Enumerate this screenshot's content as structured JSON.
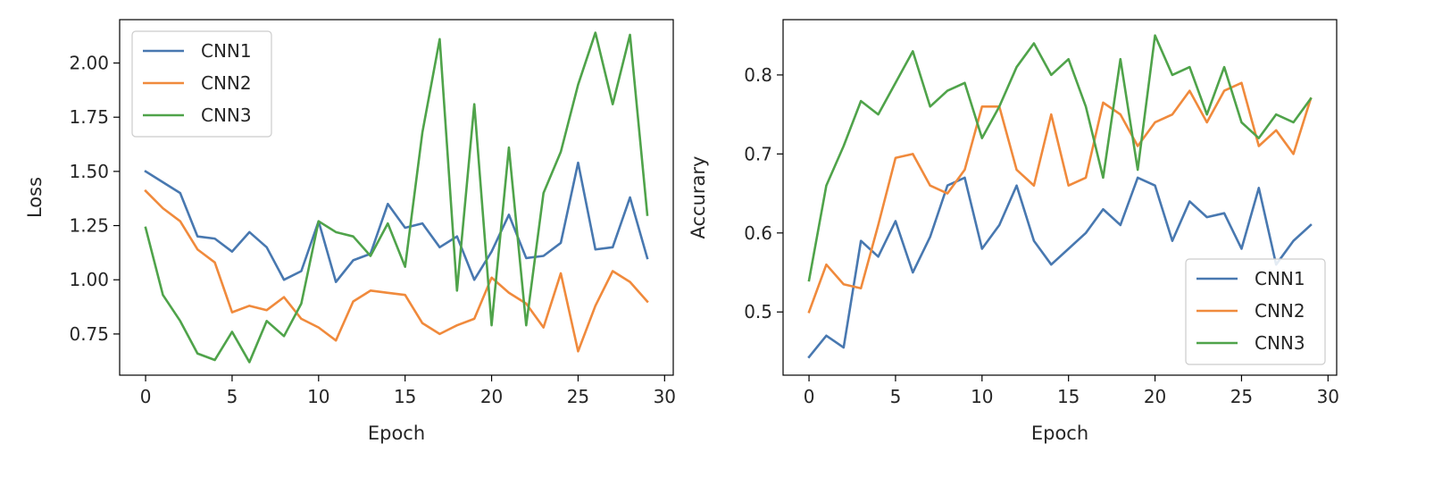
{
  "chart_data": [
    {
      "type": "line",
      "title": "",
      "xlabel": "Epoch",
      "ylabel": "Loss",
      "xlim": [
        -1.5,
        30.5
      ],
      "ylim": [
        0.56,
        2.2
      ],
      "xticks": [
        0,
        5,
        10,
        15,
        20,
        25,
        30
      ],
      "yticks": [
        0.75,
        1.0,
        1.25,
        1.5,
        1.75,
        2.0
      ],
      "ytick_labels": [
        "0.75",
        "1.00",
        "1.25",
        "1.50",
        "1.75",
        "2.00"
      ],
      "grid": false,
      "legend_position": "top-left",
      "x": [
        0,
        1,
        2,
        3,
        4,
        5,
        6,
        7,
        8,
        9,
        10,
        11,
        12,
        13,
        14,
        15,
        16,
        17,
        18,
        19,
        20,
        21,
        22,
        23,
        24,
        25,
        26,
        27,
        28,
        29
      ],
      "series": [
        {
          "name": "CNN1",
          "color": "#4878b0",
          "values": [
            1.5,
            1.45,
            1.4,
            1.2,
            1.19,
            1.13,
            1.22,
            1.15,
            1.0,
            1.04,
            1.27,
            0.99,
            1.09,
            1.12,
            1.35,
            1.24,
            1.26,
            1.15,
            1.2,
            1.0,
            1.13,
            1.3,
            1.1,
            1.11,
            1.17,
            1.54,
            1.14,
            1.15,
            1.38,
            1.1
          ]
        },
        {
          "name": "CNN2",
          "color": "#f08a3c",
          "values": [
            1.41,
            1.33,
            1.27,
            1.14,
            1.08,
            0.85,
            0.88,
            0.86,
            0.92,
            0.82,
            0.78,
            0.72,
            0.9,
            0.95,
            0.94,
            0.93,
            0.8,
            0.75,
            0.79,
            0.82,
            1.01,
            0.94,
            0.89,
            0.78,
            1.03,
            0.67,
            0.88,
            1.04,
            0.99,
            0.9
          ]
        },
        {
          "name": "CNN3",
          "color": "#4fa34a",
          "values": [
            1.24,
            0.93,
            0.81,
            0.66,
            0.63,
            0.76,
            0.62,
            0.81,
            0.74,
            0.89,
            1.27,
            1.22,
            1.2,
            1.11,
            1.26,
            1.06,
            1.68,
            2.11,
            0.95,
            1.81,
            0.79,
            1.61,
            0.79,
            1.4,
            1.59,
            1.9,
            2.14,
            1.81,
            2.13,
            1.3
          ]
        }
      ]
    },
    {
      "type": "line",
      "title": "",
      "xlabel": "Epoch",
      "ylabel": "Accurary",
      "xlim": [
        -1.5,
        30.5
      ],
      "ylim": [
        0.42,
        0.87
      ],
      "xticks": [
        0,
        5,
        10,
        15,
        20,
        25,
        30
      ],
      "yticks": [
        0.5,
        0.6,
        0.7,
        0.8
      ],
      "ytick_labels": [
        "0.5",
        "0.6",
        "0.7",
        "0.8"
      ],
      "grid": false,
      "legend_position": "bottom-right",
      "x": [
        0,
        1,
        2,
        3,
        4,
        5,
        6,
        7,
        8,
        9,
        10,
        11,
        12,
        13,
        14,
        15,
        16,
        17,
        18,
        19,
        20,
        21,
        22,
        23,
        24,
        25,
        26,
        27,
        28,
        29
      ],
      "series": [
        {
          "name": "CNN1",
          "color": "#4878b0",
          "values": [
            0.443,
            0.47,
            0.455,
            0.59,
            0.57,
            0.615,
            0.55,
            0.595,
            0.66,
            0.67,
            0.58,
            0.61,
            0.66,
            0.59,
            0.56,
            0.58,
            0.6,
            0.63,
            0.61,
            0.67,
            0.66,
            0.59,
            0.64,
            0.62,
            0.625,
            0.58,
            0.657,
            0.56,
            0.59,
            0.61
          ]
        },
        {
          "name": "CNN2",
          "color": "#f08a3c",
          "values": [
            0.5,
            0.56,
            0.535,
            0.53,
            0.61,
            0.695,
            0.7,
            0.66,
            0.65,
            0.68,
            0.76,
            0.76,
            0.68,
            0.66,
            0.75,
            0.66,
            0.67,
            0.765,
            0.75,
            0.71,
            0.74,
            0.75,
            0.78,
            0.74,
            0.78,
            0.79,
            0.71,
            0.73,
            0.7,
            0.77
          ]
        },
        {
          "name": "CNN3",
          "color": "#4fa34a",
          "values": [
            0.54,
            0.66,
            0.71,
            0.767,
            0.75,
            0.79,
            0.83,
            0.76,
            0.78,
            0.79,
            0.72,
            0.76,
            0.81,
            0.84,
            0.8,
            0.82,
            0.76,
            0.67,
            0.82,
            0.68,
            0.85,
            0.8,
            0.81,
            0.75,
            0.81,
            0.74,
            0.72,
            0.75,
            0.74,
            0.77
          ]
        }
      ]
    }
  ]
}
